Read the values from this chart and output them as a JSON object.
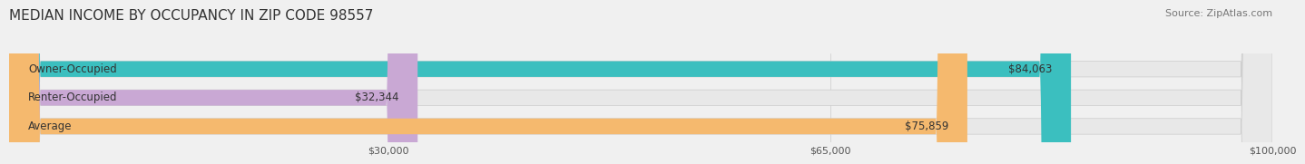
{
  "title": "MEDIAN INCOME BY OCCUPANCY IN ZIP CODE 98557",
  "source": "Source: ZipAtlas.com",
  "categories": [
    "Owner-Occupied",
    "Renter-Occupied",
    "Average"
  ],
  "values": [
    84063,
    32344,
    75859
  ],
  "bar_colors": [
    "#3bbfbf",
    "#c9a8d4",
    "#f5b96e"
  ],
  "bar_labels": [
    "$84,063",
    "$32,344",
    "$75,859"
  ],
  "xlim": [
    0,
    100000
  ],
  "xticks": [
    0,
    30000,
    65000,
    100000
  ],
  "xtick_labels": [
    "",
    "$30,000",
    "$65,000",
    "$100,000"
  ],
  "title_fontsize": 11,
  "source_fontsize": 8,
  "label_fontsize": 8.5,
  "bar_height": 0.55,
  "background_color": "#f0f0f0",
  "bar_bg_color": "#e8e8e8"
}
